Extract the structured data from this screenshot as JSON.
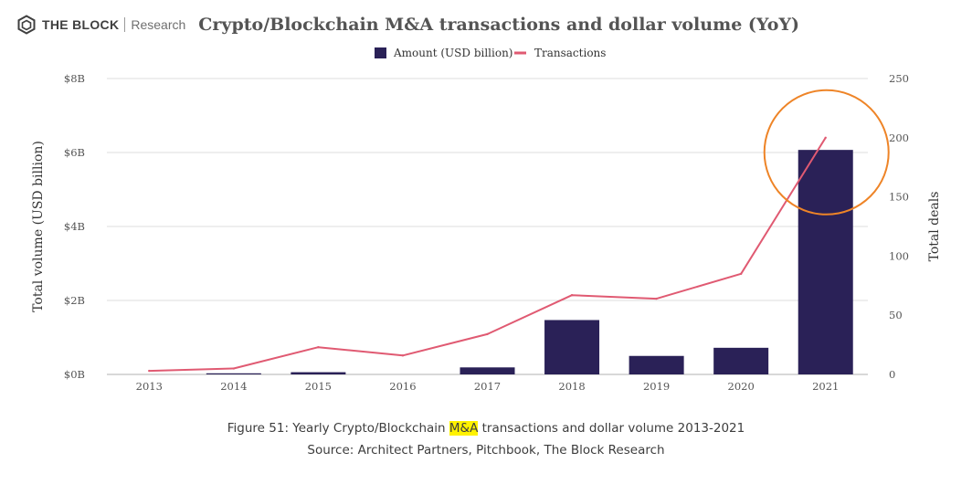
{
  "header": {
    "brand": "THE BLOCK",
    "research": "Research",
    "title": "Crypto/Blockchain M&A transactions and dollar volume (YoY)"
  },
  "chart_data": {
    "type": "bar+line",
    "categories": [
      "2013",
      "2014",
      "2015",
      "2016",
      "2017",
      "2018",
      "2019",
      "2020",
      "2021"
    ],
    "series": [
      {
        "name": "Amount (USD billion)",
        "type": "bar",
        "axis": "left",
        "color": "#2a2157",
        "values": [
          0.0,
          0.03,
          0.06,
          0.0,
          0.19,
          1.47,
          0.5,
          0.72,
          6.07
        ]
      },
      {
        "name": "Transactions",
        "type": "line",
        "axis": "right",
        "color": "#e05a72",
        "values": [
          3,
          5,
          23,
          16,
          34,
          67,
          64,
          85,
          200
        ]
      }
    ],
    "ylabel": "Total volume (USD billion)",
    "y2label": "Total deals",
    "ylim": [
      0,
      8
    ],
    "y2lim": [
      0,
      250
    ],
    "yticks": [
      "$0B",
      "$2B",
      "$4B",
      "$6B",
      "$8B"
    ],
    "y2ticks": [
      "0",
      "50",
      "100",
      "150",
      "200",
      "250"
    ],
    "grid": true,
    "legend_position": "top-center",
    "annotation": {
      "shape": "circle",
      "color": "#ee8427",
      "target": "2021"
    }
  },
  "caption": {
    "line1_before": "Figure 51: Yearly Crypto/Blockchain ",
    "line1_highlight": "M&A",
    "line1_after": " transactions and dollar volume 2013-2021",
    "line2": "Source: Architect Partners, Pitchbook, The Block Research"
  }
}
